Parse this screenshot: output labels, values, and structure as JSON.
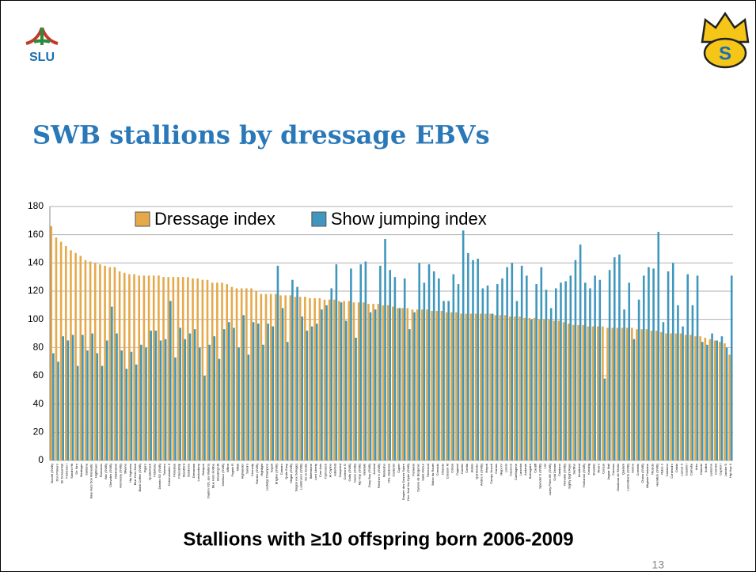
{
  "logo": "SLU",
  "badge": "S",
  "title": "SWB stallions by dressage EBVs",
  "caption": "Stallions with ≥10 offspring born 2006-2009",
  "page_number": "13",
  "chart_data": {
    "type": "bar",
    "categories": [
      "Bocelli (SWB)",
      "Don Primero",
      "Sir Donnerhall",
      "Florencio I",
      "Sandro Hit",
      "De Niro",
      "Stedinger",
      "Santana",
      "Blue Hors Don Romantic",
      "Hightower",
      "Romanov",
      "Bric (SWB)",
      "Chevalier (SWB)",
      "Rubinstein",
      "Hennessy (SWB)",
      "Silvano",
      "Hip Highness",
      "Blue Hors Zack",
      "Black Coffee (SWB)",
      "Figaro",
      "Quaterback",
      "Fidertanz",
      "Damiro SD (SWB)",
      "Tolomeo",
      "Hohenstaufen II",
      "Florestan",
      "Friendship",
      "Standford",
      "Sandorex",
      "Dressman",
      "Londonderry",
      "Rotspon",
      "Dayton XDL (ex Walters)",
      "Blue Hors Hotline",
      "Breaking Hit",
      "Obelisco (SWB)",
      "Wilton",
      "Fugato R",
      "Mitall",
      "Highlander",
      "Sandro",
      "Kennedy",
      "Rambo (SWB)",
      "Highlight",
      "Ludwigs Champion",
      "Napoli",
      "Briglino (SWB)",
      "Camaro",
      "Quite Easy",
      "Magini (SWB)",
      "Saigon (ex Sahage)",
      "Lambrusco (SWB)",
      "De la Sestle",
      "Bitterstone",
      "Lord Liberty",
      "Coer Asis",
      "Toprenisch",
      "Al Capino",
      "Adlerfeld",
      "Ganymed",
      "Corleone G",
      "Galfo (SWB)",
      "Naxos (SWB)",
      "Hip Hop (SWB)",
      "Vanidale",
      "Easy Boy (SWB)",
      "Acrobat",
      "Fletcher N (SWB)",
      "Montelino",
      "VDL Stedman",
      "Cardento",
      "Cupier",
      "Empire des Sonner Sabre",
      "Dee Jost Van Dyke (SWB)",
      "Portwein",
      "Cyrano de Bergerac",
      "Saint Amour",
      "Tinnescot",
      "Baloo du Rouet",
      "Cornado",
      "Orlando",
      "Carsson M",
      "Cohan",
      "Caganol",
      "Caretto",
      "Cordal",
      "Aldato",
      "Quintender",
      "Ambre II (SWB)",
      "Heyoh",
      "Campo Hunch",
      "Cantus",
      "Major IV",
      "Loreto",
      "Cassoon",
      "Carthagene",
      "Lancelot",
      "Andante",
      "Balougaire",
      "Cardiff",
      "Spender S (SWB)",
      "Lux",
      "Lucky Point HE (SWB)",
      "Gold Dream",
      "Catalano",
      "Ronaldo (SWB)",
      "Eighty Eight Reys",
      "Sarifino",
      "Heartland",
      "Farbaroni (SWB)",
      "Kondrig",
      "Showbiz",
      "Rivero",
      "Corsun",
      "Jaguar Mail",
      "Caresso",
      "Marabout de Revilo",
      "Quidam",
      "Lord Alberto (SWB)",
      "Nerton",
      "Cornetto",
      "Chaos (SWB)",
      "Alligator Fontaine",
      "Ricardo",
      "Hamilton (SWB)",
      "Rubio 2",
      "Cabarino",
      "Contendro",
      "Calido",
      "Lancer II",
      "Cassini I",
      "Carnaby",
      "Arko",
      "Diarado",
      "Kolibri",
      "Levisonn",
      "Cormint",
      "Capitol I",
      "Landor S",
      "Hip Hop II"
    ],
    "series": [
      {
        "name": "Dressage index",
        "color": "#e5a94a",
        "values": [
          166,
          158,
          155,
          152,
          149,
          147,
          145,
          142,
          141,
          140,
          139,
          138,
          137,
          137,
          134,
          133,
          132,
          132,
          131,
          131,
          131,
          131,
          131,
          130,
          130,
          130,
          130,
          130,
          130,
          129,
          129,
          128,
          128,
          126,
          126,
          126,
          125,
          123,
          122,
          122,
          122,
          122,
          120,
          118,
          118,
          118,
          118,
          117,
          117,
          117,
          116,
          116,
          116,
          115,
          115,
          115,
          114,
          114,
          114,
          113,
          113,
          113,
          112,
          112,
          112,
          111,
          111,
          111,
          110,
          110,
          109,
          108,
          108,
          108,
          107,
          107,
          107,
          107,
          106,
          106,
          106,
          105,
          105,
          105,
          104,
          104,
          104,
          104,
          104,
          104,
          104,
          103,
          103,
          103,
          102,
          102,
          102,
          101,
          101,
          101,
          100,
          100,
          100,
          99,
          99,
          98,
          97,
          96,
          96,
          96,
          95,
          95,
          95,
          95,
          94,
          94,
          94,
          94,
          94,
          94,
          93,
          93,
          93,
          92,
          92,
          91,
          90,
          90,
          90,
          90,
          89,
          89,
          88,
          88,
          87,
          86,
          85,
          84,
          83,
          75
        ]
      },
      {
        "name": "Show jumping index",
        "color": "#3f97bd",
        "values": [
          76,
          70,
          88,
          85,
          89,
          67,
          89,
          78,
          90,
          76,
          67,
          85,
          109,
          90,
          78,
          65,
          77,
          68,
          82,
          80,
          92,
          92,
          85,
          86,
          113,
          73,
          94,
          86,
          90,
          93,
          80,
          60,
          82,
          88,
          72,
          93,
          98,
          94,
          80,
          103,
          75,
          98,
          97,
          82,
          97,
          95,
          138,
          108,
          84,
          128,
          123,
          102,
          92,
          95,
          97,
          107,
          110,
          122,
          139,
          112,
          99,
          136,
          87,
          139,
          141,
          105,
          107,
          138,
          157,
          135,
          130,
          108,
          129,
          93,
          105,
          140,
          126,
          139,
          134,
          129,
          113,
          113,
          132,
          125,
          163,
          147,
          142,
          143,
          122,
          124,
          104,
          125,
          129,
          137,
          140,
          113,
          138,
          131,
          100,
          125,
          137,
          121,
          108,
          122,
          126,
          127,
          131,
          142,
          153,
          126,
          122,
          131,
          128,
          58,
          135,
          144,
          146,
          107,
          126,
          86,
          114,
          131,
          137,
          136,
          162,
          98,
          134,
          140,
          110,
          95,
          132,
          110,
          131,
          84,
          82,
          90,
          85,
          88,
          80,
          131
        ]
      }
    ],
    "ylim": [
      0,
      180
    ],
    "yticks": [
      0,
      20,
      40,
      60,
      80,
      100,
      120,
      140,
      160,
      180
    ],
    "grid": true,
    "legend": "top"
  }
}
